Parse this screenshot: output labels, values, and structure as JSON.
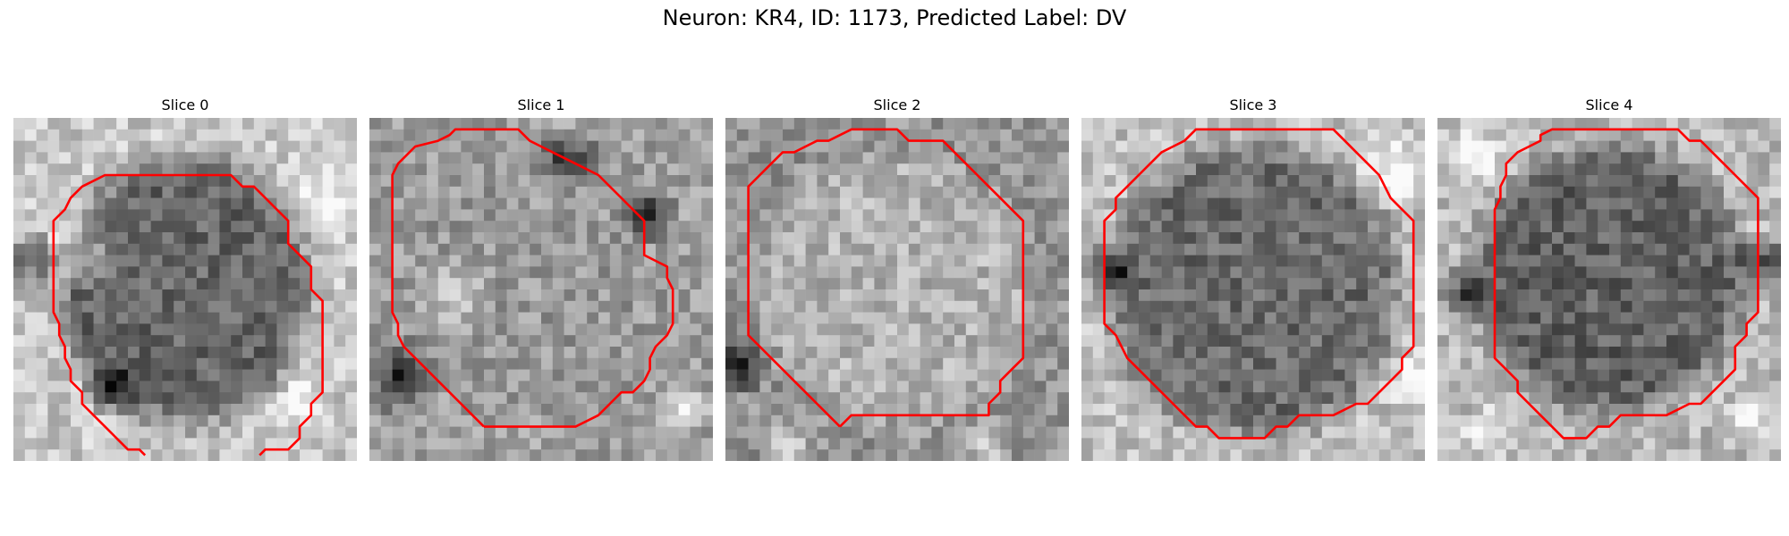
{
  "figure": {
    "title": "Neuron: KR4, ID: 1173, Predicted Label: DV"
  },
  "panels": [
    {
      "title": "Slice 0"
    },
    {
      "title": "Slice 1"
    },
    {
      "title": "Slice 2"
    },
    {
      "title": "Slice 3"
    },
    {
      "title": "Slice 4"
    }
  ],
  "colors": {
    "contour": "#ff0000",
    "colormap": "grayscale"
  }
}
